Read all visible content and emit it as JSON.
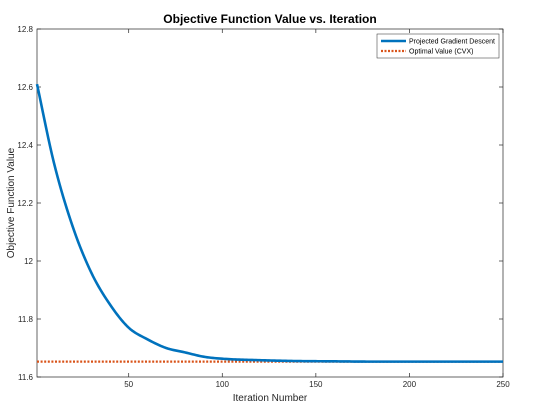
{
  "chart_data": {
    "type": "line",
    "title": "Objective Function Value vs. Iteration",
    "xlabel": "Iteration Number",
    "ylabel": "Objective Function Value",
    "xlim": [
      1,
      250
    ],
    "ylim": [
      11.6,
      12.8
    ],
    "x_ticks": [
      50,
      100,
      150,
      200,
      250
    ],
    "y_ticks": [
      11.6,
      11.8,
      12,
      12.2,
      12.4,
      12.6,
      12.8
    ],
    "x_tick_labels": [
      "50",
      "100",
      "150",
      "200",
      "250"
    ],
    "y_tick_labels": [
      "11.6",
      "11.8",
      "12",
      "12.2",
      "12.4",
      "12.6",
      "12.8"
    ],
    "grid": false,
    "legend_position": "top-right",
    "series": [
      {
        "name": "Projected Gradient Descent",
        "color": "#0072BD",
        "style": "solid",
        "x": [
          1,
          10,
          20,
          30,
          40,
          50,
          60,
          70,
          80,
          90,
          100,
          120,
          140,
          160,
          180,
          200,
          225,
          250
        ],
        "y": [
          12.61,
          12.34,
          12.12,
          11.96,
          11.85,
          11.77,
          11.73,
          11.7,
          11.685,
          11.67,
          11.663,
          11.658,
          11.655,
          11.654,
          11.653,
          11.653,
          11.653,
          11.653
        ]
      },
      {
        "name": "Optimal Value (CVX)",
        "color": "#D95319",
        "style": "dotted",
        "x": [
          1,
          250
        ],
        "y": [
          11.653,
          11.653
        ]
      }
    ]
  }
}
